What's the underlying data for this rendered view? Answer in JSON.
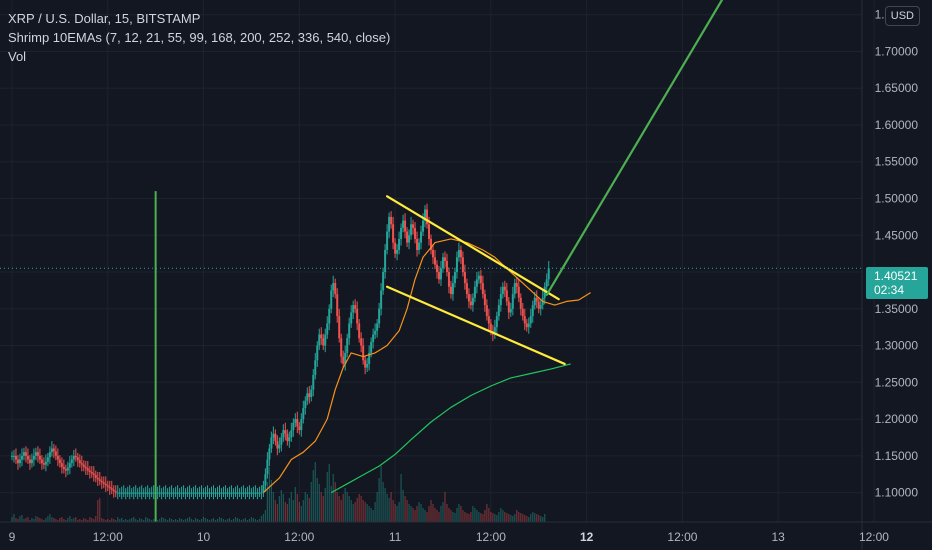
{
  "legend": {
    "symbol_line": "XRP / U.S. Dollar, 15, BITSTAMP",
    "indicator_line": "Shrimp 10EMAs (7, 12, 21, 55, 99, 168, 200, 252, 336, 540, close)",
    "volume_line": "Vol"
  },
  "currency_button": "USD",
  "last_price": {
    "value": "1.40521",
    "countdown": "02:34"
  },
  "colors": {
    "background": "#131722",
    "up": "#26a69a",
    "down": "#ef5350",
    "ema_fast": "#f7931a",
    "ema_slow": "#22c55e",
    "trendline": "#ffeb3b",
    "projection": "#4caf50",
    "axis_text": "#b2b5be"
  },
  "chart_data": {
    "type": "candlestick",
    "y_axis": {
      "ticks": [
        "1.75000",
        "1.70000",
        "1.65000",
        "1.60000",
        "1.55000",
        "1.50000",
        "1.45000",
        "1.40000",
        "1.35000",
        "1.30000",
        "1.25000",
        "1.20000",
        "1.15000",
        "1.10000"
      ],
      "ylim": [
        1.06,
        1.77
      ]
    },
    "x_axis": {
      "ticks": [
        "9",
        "12:00",
        "10",
        "12:00",
        "11",
        "12:00",
        "12",
        "12:00",
        "13",
        "12:00"
      ],
      "xlim": [
        -6,
        426
      ]
    },
    "candles": {
      "x_start": 0,
      "x_step": 1,
      "values": [
        1.15,
        1.15,
        1.145,
        1.14,
        1.145,
        1.15,
        1.155,
        1.15,
        1.145,
        1.14,
        1.145,
        1.15,
        1.155,
        1.15,
        1.145,
        1.14,
        1.138,
        1.142,
        1.148,
        1.155,
        1.16,
        1.156,
        1.15,
        1.145,
        1.14,
        1.135,
        1.132,
        1.13,
        1.134,
        1.14,
        1.145,
        1.15,
        1.148,
        1.144,
        1.14,
        1.138,
        1.135,
        1.133,
        1.13,
        1.128,
        1.126,
        1.124,
        1.12,
        1.118,
        1.116,
        1.114,
        1.112,
        1.11,
        1.108,
        1.106,
        1.104,
        1.102,
        1.1,
        1.1,
        1.1,
        1.1,
        1.1,
        1.1,
        1.1,
        1.1,
        1.1,
        1.1,
        1.1,
        1.1,
        1.1,
        1.1,
        1.1,
        1.1,
        1.1,
        1.1,
        1.1,
        1.1,
        1.1,
        1.1,
        1.1,
        1.1,
        1.1,
        1.1,
        1.1,
        1.1,
        1.1,
        1.1,
        1.1,
        1.1,
        1.1,
        1.1,
        1.1,
        1.1,
        1.1,
        1.1,
        1.1,
        1.1,
        1.1,
        1.1,
        1.1,
        1.1,
        1.1,
        1.1,
        1.1,
        1.1,
        1.1,
        1.1,
        1.1,
        1.1,
        1.1,
        1.1,
        1.1,
        1.1,
        1.1,
        1.1,
        1.1,
        1.1,
        1.1,
        1.1,
        1.1,
        1.1,
        1.1,
        1.1,
        1.1,
        1.1,
        1.1,
        1.1,
        1.1,
        1.1,
        1.1,
        1.1,
        1.11,
        1.125,
        1.145,
        1.16,
        1.175,
        1.18,
        1.17,
        1.16,
        1.165,
        1.175,
        1.185,
        1.18,
        1.17,
        1.175,
        1.185,
        1.195,
        1.2,
        1.19,
        1.185,
        1.2,
        1.215,
        1.225,
        1.235,
        1.23,
        1.24,
        1.26,
        1.28,
        1.3,
        1.315,
        1.31,
        1.3,
        1.315,
        1.33,
        1.35,
        1.375,
        1.385,
        1.37,
        1.34,
        1.31,
        1.285,
        1.275,
        1.29,
        1.31,
        1.33,
        1.345,
        1.355,
        1.35,
        1.33,
        1.31,
        1.3,
        1.28,
        1.27,
        1.275,
        1.29,
        1.305,
        1.315,
        1.32,
        1.33,
        1.35,
        1.375,
        1.4,
        1.43,
        1.455,
        1.475,
        1.465,
        1.44,
        1.425,
        1.43,
        1.445,
        1.46,
        1.47,
        1.455,
        1.44,
        1.45,
        1.465,
        1.46,
        1.445,
        1.43,
        1.44,
        1.455,
        1.47,
        1.485,
        1.465,
        1.445,
        1.43,
        1.42,
        1.41,
        1.4,
        1.39,
        1.405,
        1.42,
        1.415,
        1.4,
        1.38,
        1.37,
        1.385,
        1.4,
        1.42,
        1.43,
        1.42,
        1.4,
        1.385,
        1.37,
        1.36,
        1.355,
        1.365,
        1.38,
        1.39,
        1.395,
        1.385,
        1.37,
        1.355,
        1.34,
        1.33,
        1.32,
        1.315,
        1.325,
        1.34,
        1.355,
        1.37,
        1.38,
        1.375,
        1.36,
        1.345,
        1.35,
        1.37,
        1.385,
        1.38,
        1.365,
        1.35,
        1.34,
        1.33,
        1.325,
        1.33,
        1.34,
        1.355,
        1.365,
        1.36,
        1.35,
        1.355,
        1.365,
        1.38,
        1.39,
        1.405
      ]
    },
    "ema_fast": {
      "points": [
        [
          126,
          1.1
        ],
        [
          134,
          1.12
        ],
        [
          140,
          1.145
        ],
        [
          146,
          1.155
        ],
        [
          152,
          1.17
        ],
        [
          158,
          1.2
        ],
        [
          162,
          1.24
        ],
        [
          166,
          1.27
        ],
        [
          170,
          1.29
        ],
        [
          176,
          1.285
        ],
        [
          182,
          1.29
        ],
        [
          188,
          1.3
        ],
        [
          194,
          1.32
        ],
        [
          198,
          1.35
        ],
        [
          202,
          1.39
        ],
        [
          206,
          1.42
        ],
        [
          212,
          1.44
        ],
        [
          220,
          1.445
        ],
        [
          228,
          1.44
        ],
        [
          236,
          1.43
        ],
        [
          242,
          1.42
        ],
        [
          248,
          1.405
        ],
        [
          254,
          1.39
        ],
        [
          260,
          1.375
        ],
        [
          266,
          1.36
        ],
        [
          272,
          1.355
        ],
        [
          278,
          1.36
        ],
        [
          284,
          1.362
        ],
        [
          290,
          1.372
        ]
      ]
    },
    "ema_slow": {
      "points": [
        [
          160,
          1.1
        ],
        [
          168,
          1.112
        ],
        [
          176,
          1.124
        ],
        [
          184,
          1.136
        ],
        [
          192,
          1.152
        ],
        [
          200,
          1.172
        ],
        [
          210,
          1.196
        ],
        [
          220,
          1.216
        ],
        [
          230,
          1.232
        ],
        [
          240,
          1.245
        ],
        [
          250,
          1.256
        ],
        [
          260,
          1.262
        ],
        [
          270,
          1.268
        ],
        [
          280,
          1.275
        ]
      ]
    },
    "volume": {
      "max_value": 100,
      "values": [
        5,
        8,
        4,
        3,
        6,
        7,
        3,
        4,
        5,
        2,
        4,
        3,
        6,
        5,
        4,
        3,
        2,
        4,
        6,
        8,
        5,
        4,
        3,
        2,
        4,
        5,
        3,
        2,
        4,
        6,
        3,
        4,
        5,
        2,
        3,
        2,
        4,
        3,
        2,
        5,
        4,
        3,
        6,
        22,
        24,
        4,
        3,
        2,
        3,
        2,
        4,
        3,
        2,
        5,
        3,
        4,
        2,
        3,
        2,
        3,
        4,
        5,
        3,
        2,
        4,
        3,
        2,
        5,
        4,
        3,
        2,
        3,
        4,
        2,
        3,
        5,
        4,
        3,
        2,
        4,
        3,
        2,
        3,
        2,
        4,
        3,
        2,
        3,
        4,
        5,
        3,
        2,
        4,
        3,
        2,
        3,
        5,
        4,
        3,
        2,
        3,
        4,
        2,
        3,
        5,
        4,
        3,
        2,
        3,
        4,
        2,
        3,
        5,
        4,
        3,
        2,
        3,
        4,
        2,
        3,
        5,
        4,
        3,
        2,
        3,
        6,
        8,
        12,
        40,
        55,
        42,
        30,
        22,
        18,
        26,
        32,
        28,
        20,
        18,
        24,
        30,
        22,
        35,
        28,
        20,
        16,
        22,
        30,
        28,
        24,
        40,
        52,
        60,
        44,
        38,
        30,
        26,
        34,
        50,
        58,
        36,
        48,
        40,
        30,
        26,
        22,
        28,
        34,
        30,
        26,
        22,
        18,
        20,
        24,
        28,
        26,
        22,
        20,
        18,
        16,
        14,
        12,
        20,
        30,
        44,
        56,
        40,
        34,
        28,
        24,
        30,
        22,
        18,
        16,
        20,
        48,
        32,
        26,
        22,
        18,
        16,
        14,
        12,
        16,
        20,
        18,
        14,
        12,
        10,
        16,
        22,
        18,
        14,
        12,
        10,
        16,
        20,
        30,
        18,
        14,
        12,
        10,
        9,
        14,
        18,
        16,
        12,
        10,
        9,
        8,
        10,
        16,
        14,
        12,
        10,
        9,
        8,
        12,
        18,
        14,
        10,
        9,
        8,
        7,
        10,
        14,
        12,
        10,
        9,
        8,
        7,
        6,
        8,
        12,
        10,
        9,
        8,
        7,
        6,
        5,
        8,
        10,
        9,
        8,
        7,
        6,
        5,
        8
      ]
    },
    "vertical_marker": {
      "x": 72,
      "y_top": 1.51
    },
    "flag_upper_line": [
      [
        188,
        1.503
      ],
      [
        274,
        1.363
      ]
    ],
    "flag_lower_line": [
      [
        188,
        1.38
      ],
      [
        277,
        1.275
      ]
    ],
    "projection_line": [
      [
        268,
        1.369
      ],
      [
        358,
        1.78
      ]
    ],
    "last_price_value": 1.40521
  }
}
